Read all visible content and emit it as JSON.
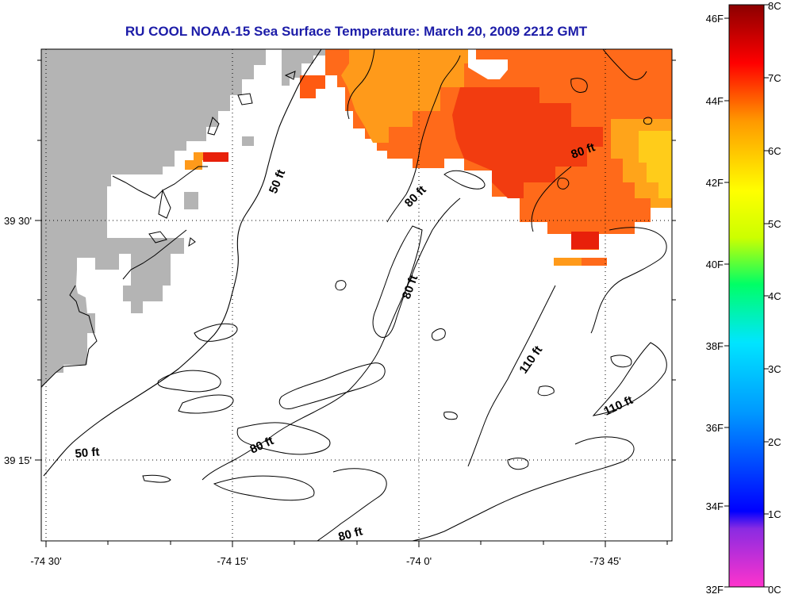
{
  "title": "RU COOL  NOAA-15  Sea Surface Temperature:  March 20, 2009 2212 GMT",
  "map": {
    "longitude_labels": [
      "-74 30'",
      "-74 15'",
      "-74 0'",
      "-73 45'"
    ],
    "latitude_labels": [
      "39 30'",
      "39 15'"
    ],
    "contour_labels": [
      "50 ft",
      "50 ft",
      "80 ft",
      "80 ft",
      "80 ft",
      "80 ft",
      "80 ft",
      "110 ft",
      "110 ft"
    ]
  },
  "colorbar": {
    "fahrenheit_labels": [
      "46F",
      "44F",
      "42F",
      "40F",
      "38F",
      "36F",
      "34F",
      "32F"
    ],
    "celsius_labels": [
      "8C",
      "7C",
      "6C",
      "5C",
      "4C",
      "3C",
      "2C",
      "1C",
      "0C"
    ],
    "colors": [
      "#ff33cc",
      "#8a2be2",
      "#0000ff",
      "#00e5ff",
      "#00ff66",
      "#ccff00",
      "#ffff00",
      "#ff9900",
      "#ff0000",
      "#8b0000"
    ]
  },
  "colors": {
    "land": "#b4b4b4",
    "sst_warm": "#ff6a1a",
    "sst_orange": "#ff9a1a",
    "sst_red": "#e8200a",
    "sst_yellow": "#ffcc1a",
    "title": "#1c1ca8"
  }
}
